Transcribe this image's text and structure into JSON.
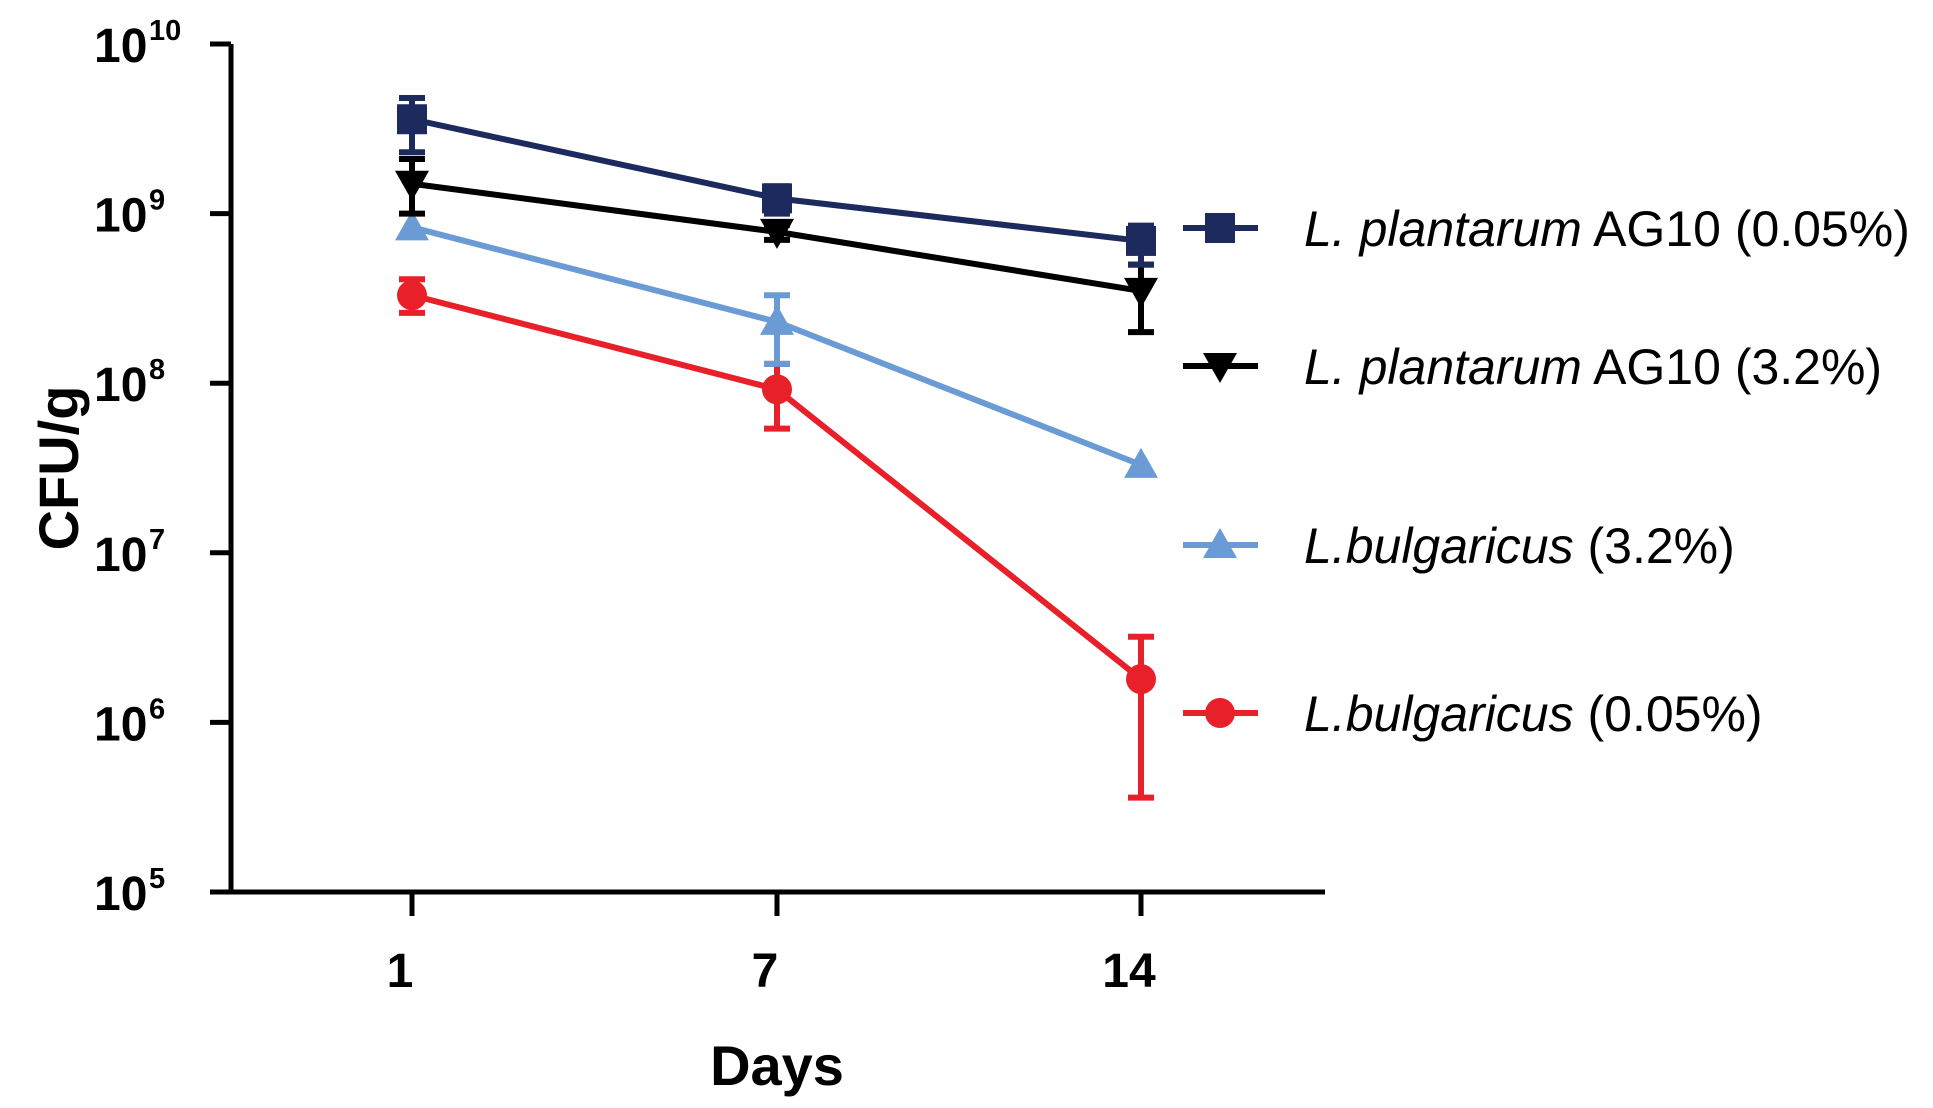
{
  "chart_data": {
    "type": "line",
    "title": "",
    "xlabel": "Days",
    "ylabel": "CFU/g",
    "yscale": "log",
    "ylim": [
      100000,
      10000000000
    ],
    "x_categories": [
      "1",
      "7",
      "14"
    ],
    "y_ticks": [
      {
        "base": "10",
        "exp": "5"
      },
      {
        "base": "10",
        "exp": "6"
      },
      {
        "base": "10",
        "exp": "7"
      },
      {
        "base": "10",
        "exp": "8"
      },
      {
        "base": "10",
        "exp": "9"
      },
      {
        "base": "10",
        "exp": "10"
      }
    ],
    "legend_position": "right",
    "series": [
      {
        "name": "L. plantarum AG10 (0.05%)",
        "name_italic": "L. plantarum",
        "name_rest": " AG10 (0.05%)",
        "color": "#1c2a5e",
        "marker": "square",
        "values": [
          3600000000,
          1230000000,
          690000000
        ],
        "err_low": [
          2300000000,
          1000000000,
          500000000
        ],
        "err_high": [
          4800000000,
          1450000000,
          850000000
        ]
      },
      {
        "name": "L. plantarum AG10 (3.2%)",
        "name_italic": "L. plantarum",
        "name_rest": " AG10 (3.2%)",
        "color": "#000000",
        "marker": "triangle-down",
        "values": [
          1500000000,
          780000000,
          350000000
        ],
        "err_low": [
          1000000000,
          700000000,
          200000000
        ],
        "err_high": [
          2100000000,
          860000000,
          500000000
        ]
      },
      {
        "name": "L.bulgaricus (3.2%)",
        "name_italic": "L.bulgaricus",
        "name_rest": " (3.2%)",
        "color": "#6a9bd4",
        "marker": "triangle-up",
        "values": [
          830000000,
          230000000,
          33000000
        ],
        "err_low": [
          830000000,
          130000000,
          33000000
        ],
        "err_high": [
          830000000,
          330000000,
          33000000
        ]
      },
      {
        "name": "L.bulgaricus (0.05%)",
        "name_italic": "L.bulgaricus",
        "name_rest": " (0.05%)",
        "color": "#e8202a",
        "marker": "circle",
        "values": [
          330000000,
          92000000,
          1800000
        ],
        "err_low": [
          260000000,
          54000000,
          360000
        ],
        "err_high": [
          410000000,
          130000000,
          3200000
        ]
      }
    ]
  }
}
